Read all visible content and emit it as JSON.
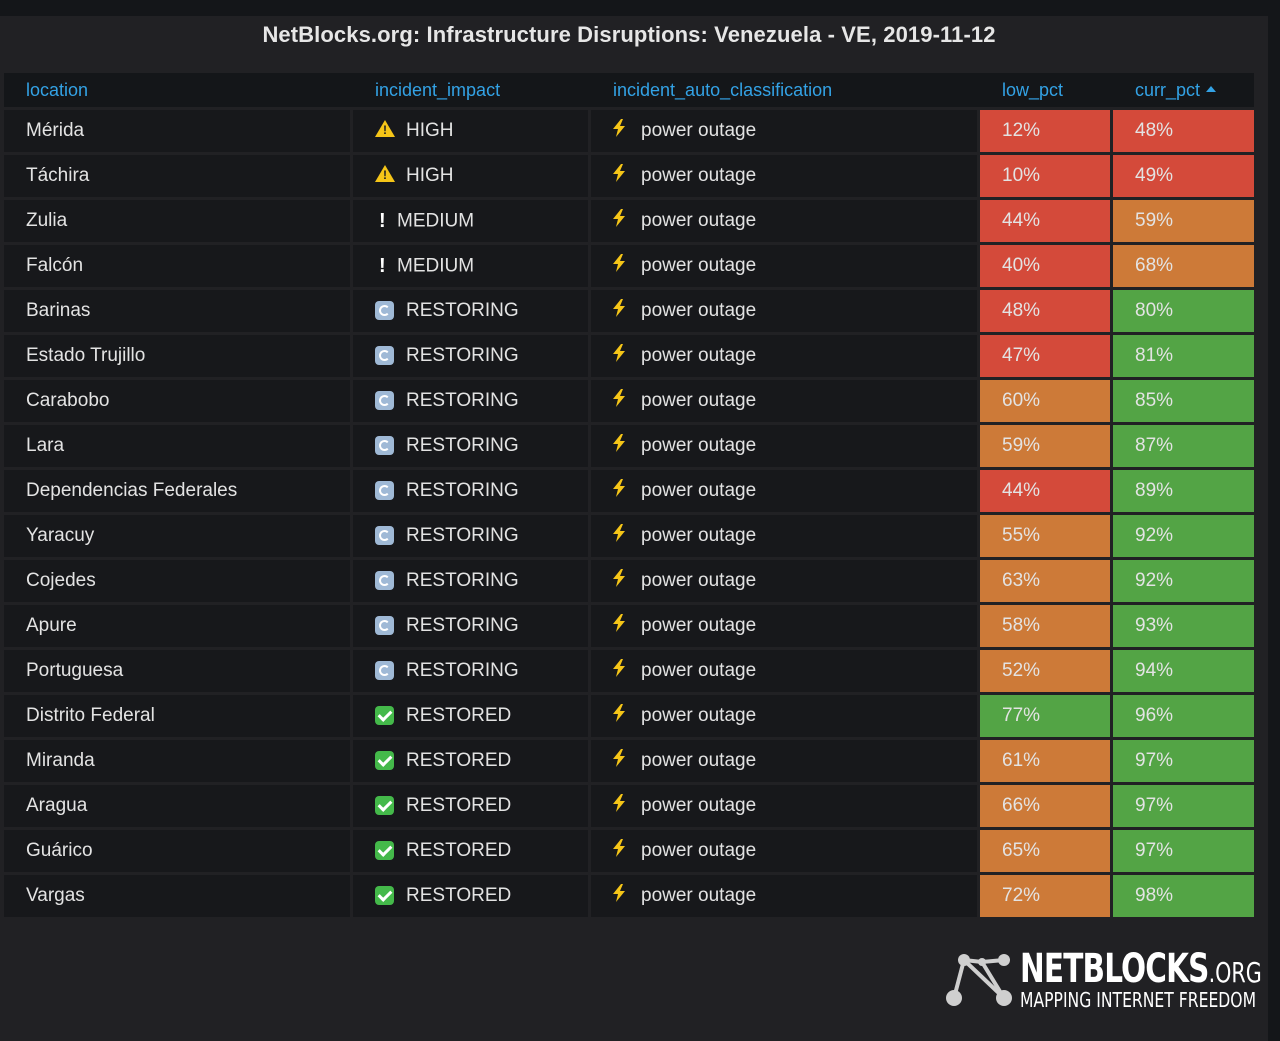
{
  "panel": {
    "title": "NetBlocks.org: Infrastructure Disruptions: Venezuela - VE, 2019-11-12"
  },
  "table": {
    "columns": [
      "location",
      "incident_impact",
      "incident_auto_classification",
      "low_pct",
      "curr_pct"
    ],
    "sorted_column": "curr_pct",
    "sort_direction": "ascending",
    "rows": [
      {
        "location": "Mérida",
        "impact": "HIGH",
        "impact_icon": "warning-icon",
        "classification": "power outage",
        "low_pct": "12%",
        "curr_pct": "48%",
        "low_color": "red",
        "curr_color": "red"
      },
      {
        "location": "Táchira",
        "impact": "HIGH",
        "impact_icon": "warning-icon",
        "classification": "power outage",
        "low_pct": "10%",
        "curr_pct": "49%",
        "low_color": "red",
        "curr_color": "red"
      },
      {
        "location": "Zulia",
        "impact": "MEDIUM",
        "impact_icon": "exclamation-icon",
        "classification": "power outage",
        "low_pct": "44%",
        "curr_pct": "59%",
        "low_color": "red",
        "curr_color": "orange"
      },
      {
        "location": "Falcón",
        "impact": "MEDIUM",
        "impact_icon": "exclamation-icon",
        "classification": "power outage",
        "low_pct": "40%",
        "curr_pct": "68%",
        "low_color": "red",
        "curr_color": "orange"
      },
      {
        "location": "Barinas",
        "impact": "RESTORING",
        "impact_icon": "restoring-icon",
        "classification": "power outage",
        "low_pct": "48%",
        "curr_pct": "80%",
        "low_color": "red",
        "curr_color": "green"
      },
      {
        "location": "Estado Trujillo",
        "impact": "RESTORING",
        "impact_icon": "restoring-icon",
        "classification": "power outage",
        "low_pct": "47%",
        "curr_pct": "81%",
        "low_color": "red",
        "curr_color": "green"
      },
      {
        "location": "Carabobo",
        "impact": "RESTORING",
        "impact_icon": "restoring-icon",
        "classification": "power outage",
        "low_pct": "60%",
        "curr_pct": "85%",
        "low_color": "orange",
        "curr_color": "green"
      },
      {
        "location": "Lara",
        "impact": "RESTORING",
        "impact_icon": "restoring-icon",
        "classification": "power outage",
        "low_pct": "59%",
        "curr_pct": "87%",
        "low_color": "orange",
        "curr_color": "green"
      },
      {
        "location": "Dependencias Federales",
        "impact": "RESTORING",
        "impact_icon": "restoring-icon",
        "classification": "power outage",
        "low_pct": "44%",
        "curr_pct": "89%",
        "low_color": "red",
        "curr_color": "green"
      },
      {
        "location": "Yaracuy",
        "impact": "RESTORING",
        "impact_icon": "restoring-icon",
        "classification": "power outage",
        "low_pct": "55%",
        "curr_pct": "92%",
        "low_color": "orange",
        "curr_color": "green"
      },
      {
        "location": "Cojedes",
        "impact": "RESTORING",
        "impact_icon": "restoring-icon",
        "classification": "power outage",
        "low_pct": "63%",
        "curr_pct": "92%",
        "low_color": "orange",
        "curr_color": "green"
      },
      {
        "location": "Apure",
        "impact": "RESTORING",
        "impact_icon": "restoring-icon",
        "classification": "power outage",
        "low_pct": "58%",
        "curr_pct": "93%",
        "low_color": "orange",
        "curr_color": "green"
      },
      {
        "location": "Portuguesa",
        "impact": "RESTORING",
        "impact_icon": "restoring-icon",
        "classification": "power outage",
        "low_pct": "52%",
        "curr_pct": "94%",
        "low_color": "orange",
        "curr_color": "green"
      },
      {
        "location": "Distrito Federal",
        "impact": "RESTORED",
        "impact_icon": "restored-check-icon",
        "classification": "power outage",
        "low_pct": "77%",
        "curr_pct": "96%",
        "low_color": "green",
        "curr_color": "green"
      },
      {
        "location": "Miranda",
        "impact": "RESTORED",
        "impact_icon": "restored-check-icon",
        "classification": "power outage",
        "low_pct": "61%",
        "curr_pct": "97%",
        "low_color": "orange",
        "curr_color": "green"
      },
      {
        "location": "Aragua",
        "impact": "RESTORED",
        "impact_icon": "restored-check-icon",
        "classification": "power outage",
        "low_pct": "66%",
        "curr_pct": "97%",
        "low_color": "orange",
        "curr_color": "green"
      },
      {
        "location": "Guárico",
        "impact": "RESTORED",
        "impact_icon": "restored-check-icon",
        "classification": "power outage",
        "low_pct": "65%",
        "curr_pct": "97%",
        "low_color": "orange",
        "curr_color": "green"
      },
      {
        "location": "Vargas",
        "impact": "RESTORED",
        "impact_icon": "restored-check-icon",
        "classification": "power outage",
        "low_pct": "72%",
        "curr_pct": "98%",
        "low_color": "orange",
        "curr_color": "green"
      }
    ]
  },
  "colors": {
    "red": "#d44a3a",
    "orange": "#cd7a38",
    "green": "#53a445",
    "header_link": "#33a2e5"
  },
  "logo": {
    "word": "NETBLOCKS",
    "suffix": ".ORG",
    "tagline": "MAPPING INTERNET FREEDOM"
  }
}
